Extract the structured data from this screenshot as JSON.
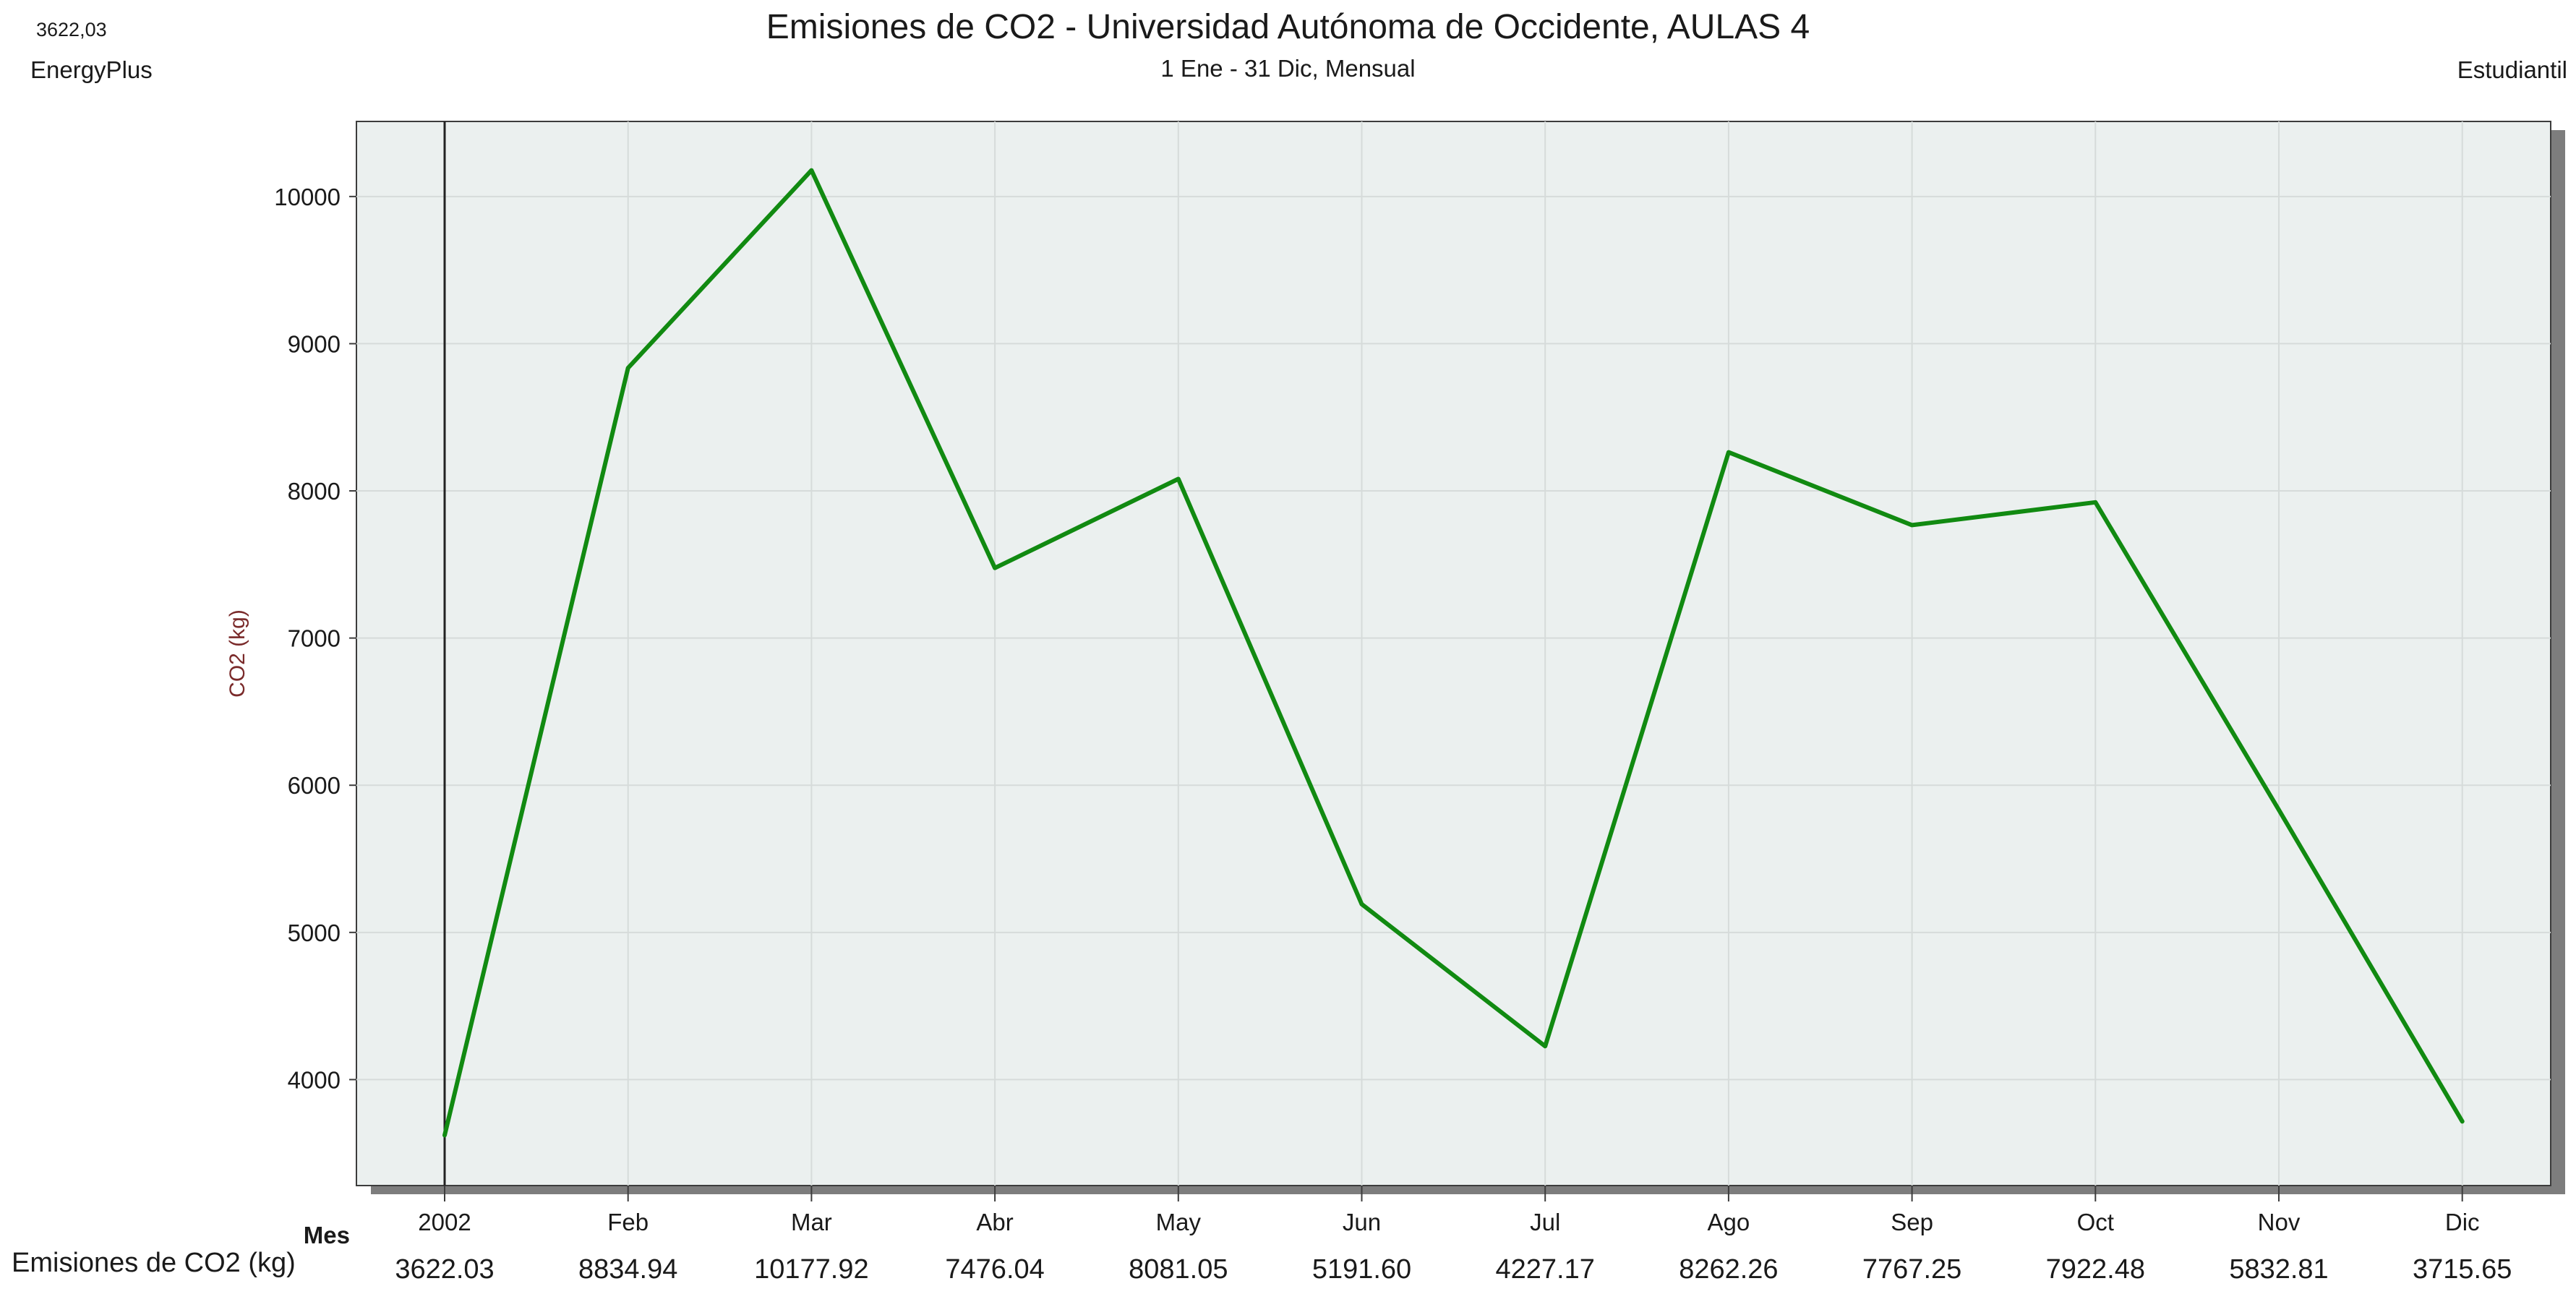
{
  "header": {
    "cursor_value": "3622,03",
    "software": "EnergyPlus",
    "variant": "Estudiantil"
  },
  "chart_data": {
    "type": "line",
    "title": "Emisiones de CO2 - Universidad Autónoma de Occidente, AULAS 4",
    "subtitle": "1 Ene - 31 Dic, Mensual",
    "xlabel": "Mes",
    "ylabel": "CO2 (kg)",
    "categories": [
      "2002",
      "Feb",
      "Mar",
      "Abr",
      "May",
      "Jun",
      "Jul",
      "Ago",
      "Sep",
      "Oct",
      "Nov",
      "Dic"
    ],
    "series": [
      {
        "name": "Emisiones de CO2 (kg)",
        "color": "#118a11",
        "values": [
          3622.03,
          8834.94,
          10177.92,
          7476.04,
          8081.05,
          5191.6,
          4227.17,
          8262.26,
          7767.25,
          7922.48,
          5832.81,
          3715.65
        ],
        "value_labels": [
          "3622.03",
          "8834.94",
          "10177.92",
          "7476.04",
          "8081.05",
          "5191.60",
          "4227.17",
          "8262.26",
          "7767.25",
          "7922.48",
          "5832.81",
          "3715.65"
        ]
      }
    ],
    "yticks": [
      4000,
      5000,
      6000,
      7000,
      8000,
      9000,
      10000
    ],
    "ylim": [
      3280,
      10510
    ],
    "grid": true,
    "cursor_at_category": "2002",
    "plot_background": "#ebf0ef",
    "shadow_color": "#7d7d7d"
  }
}
